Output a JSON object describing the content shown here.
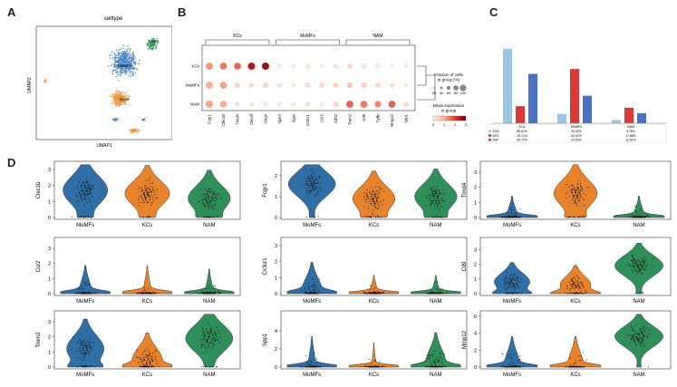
{
  "panels": {
    "A": "A",
    "B": "B",
    "C": "C",
    "D": "D"
  },
  "umap": {
    "title": "celltype",
    "xlabel": "UMAP1",
    "ylabel": "UMAP2",
    "colors": {
      "KCs": "#4a86c8",
      "MoMFs": "#f0923a",
      "NAM": "#3a9a5c"
    },
    "labels": {
      "KCs": "KCs",
      "MoMFs": "MoMFs",
      "NAM": "NAM"
    }
  },
  "dotplot": {
    "groups": [
      "KCs",
      "MoMFs",
      "NAM"
    ],
    "group_labels": [
      "KCs",
      "MoMFs",
      "NAM"
    ],
    "row_labels": [
      "KCs",
      "MoMFs",
      "NAM"
    ],
    "genes": [
      "Fcgr1",
      "Clec1b",
      "Timd4",
      "Clec4f",
      "Vsig4",
      "Itgam",
      "Itgax",
      "Cx3cr1",
      "Ccr2",
      "Cd52",
      "Trem2",
      "Cd9",
      "Tgfbi",
      "Mmp12",
      "Spp1"
    ],
    "mean_expression": [
      [
        1.2,
        1.4,
        1.6,
        2.4,
        2.6,
        0.2,
        0.1,
        0.2,
        0.1,
        0.3,
        0.4,
        0.3,
        0.2,
        0.1,
        0.1
      ],
      [
        1.0,
        1.1,
        0.5,
        0.4,
        0.5,
        0.3,
        0.2,
        0.4,
        0.4,
        0.5,
        0.7,
        0.5,
        0.4,
        0.3,
        0.2
      ],
      [
        1.1,
        1.0,
        0.3,
        0.2,
        0.3,
        0.2,
        0.2,
        0.3,
        0.2,
        0.4,
        1.6,
        1.4,
        1.3,
        1.6,
        0.4
      ]
    ],
    "fraction": [
      [
        0.9,
        0.9,
        0.85,
        0.95,
        0.95,
        0.3,
        0.2,
        0.4,
        0.2,
        0.4,
        0.5,
        0.5,
        0.4,
        0.2,
        0.2
      ],
      [
        0.9,
        0.85,
        0.5,
        0.4,
        0.5,
        0.4,
        0.3,
        0.5,
        0.5,
        0.5,
        0.6,
        0.6,
        0.5,
        0.4,
        0.3
      ],
      [
        0.9,
        0.85,
        0.4,
        0.3,
        0.4,
        0.3,
        0.3,
        0.4,
        0.3,
        0.5,
        0.9,
        0.9,
        0.8,
        0.9,
        0.5
      ]
    ],
    "legend_fraction_title": "Fraction of cells\nin group (%)",
    "legend_fraction_ticks": [
      "20",
      "40",
      "60",
      "80",
      "100"
    ],
    "legend_mean_title": "Mean expression\nin group",
    "legend_mean_ticks": [
      "0",
      "1",
      "2",
      "3"
    ]
  },
  "chart_data": [
    {
      "type": "bar",
      "panel": "C",
      "categories": [
        "KCs",
        "MoMFs",
        "NAM"
      ],
      "series": [
        {
          "name": "SOD",
          "color": "#9cc4e4",
          "values": [
            85.62,
            10.62,
            3.76
          ]
        },
        {
          "name": "NFD",
          "color": "#d93a35",
          "values": [
            19.71,
            62.41,
            17.88
          ]
        },
        {
          "name": "ASF",
          "color": "#4a72c0",
          "values": [
            56.77,
            31.62,
            11.61
          ]
        }
      ],
      "table_rows": [
        {
          "name": "SOD",
          "cells": [
            "85.62%",
            "10.62%",
            "3.76%"
          ]
        },
        {
          "name": "NFD",
          "cells": [
            "19.71%",
            "62.41%",
            "17.88%"
          ]
        },
        {
          "name": "ASF",
          "cells": [
            "56.77%",
            "31.62%",
            "11.61%"
          ]
        }
      ],
      "ylim": [
        0,
        100
      ]
    },
    {
      "type": "violin",
      "panel": "D",
      "categories": [
        "MoMFs",
        "KCs",
        "NAM"
      ],
      "colors": [
        "#2f6fa5",
        "#e8822b",
        "#2f8f58"
      ],
      "genes": [
        {
          "gene": "Clec1b",
          "yticks": [
            0,
            1,
            2,
            3
          ],
          "ymax": 3.4,
          "medians": [
            1.7,
            1.5,
            1.2
          ],
          "spreads": [
            0.9,
            0.8,
            0.8
          ],
          "zero_frac": [
            0.1,
            0.1,
            0.15
          ]
        },
        {
          "gene": "Fcgr1",
          "yticks": [
            0,
            1,
            2
          ],
          "ymax": 2.6,
          "medians": [
            1.6,
            0.9,
            1.0
          ],
          "spreads": [
            0.6,
            0.6,
            0.6
          ],
          "zero_frac": [
            0.05,
            0.15,
            0.15
          ]
        },
        {
          "gene": "Timd4",
          "yticks": [
            0,
            1,
            2,
            3
          ],
          "ymax": 3.6,
          "medians": [
            0.1,
            1.6,
            0.1
          ],
          "spreads": [
            0.6,
            0.9,
            0.6
          ],
          "zero_frac": [
            0.8,
            0.15,
            0.8
          ]
        },
        {
          "gene": "Ccr2",
          "yticks": [
            0,
            1,
            2,
            3
          ],
          "ymax": 3.6,
          "medians": [
            0.1,
            0.1,
            0.1
          ],
          "spreads": [
            0.8,
            0.8,
            0.7
          ],
          "zero_frac": [
            0.75,
            0.85,
            0.85
          ]
        },
        {
          "gene": "Cx3cr1",
          "yticks": [
            0,
            1,
            2,
            3
          ],
          "ymax": 3.4,
          "medians": [
            0.2,
            0.05,
            0.05
          ],
          "spreads": [
            0.8,
            0.5,
            0.5
          ],
          "zero_frac": [
            0.6,
            0.85,
            0.85
          ]
        },
        {
          "gene": "Cd9",
          "yticks": [
            0,
            1,
            2,
            3
          ],
          "ymax": 3.7,
          "medians": [
            0.8,
            0.6,
            1.9
          ],
          "spreads": [
            0.6,
            0.6,
            0.7
          ],
          "zero_frac": [
            0.3,
            0.4,
            0.05
          ]
        },
        {
          "gene": "Trem2",
          "yticks": [
            0,
            1,
            2,
            3
          ],
          "ymax": 3.6,
          "medians": [
            1.2,
            0.5,
            1.9
          ],
          "spreads": [
            0.9,
            0.8,
            0.9
          ],
          "zero_frac": [
            0.25,
            0.4,
            0.05
          ]
        },
        {
          "gene": "Spp1",
          "yticks": [
            0,
            2,
            4
          ],
          "ymax": 6.0,
          "medians": [
            0.1,
            0.05,
            0.5
          ],
          "spreads": [
            1.5,
            1.2,
            1.5
          ],
          "zero_frac": [
            0.85,
            0.92,
            0.6
          ]
        },
        {
          "gene": "Mmp12",
          "yticks": [
            0,
            2,
            4,
            6
          ],
          "ymax": 6.4,
          "medians": [
            0.3,
            0.3,
            3.6
          ],
          "spreads": [
            1.5,
            1.5,
            1.2
          ],
          "zero_frac": [
            0.7,
            0.7,
            0.05
          ]
        }
      ]
    }
  ]
}
